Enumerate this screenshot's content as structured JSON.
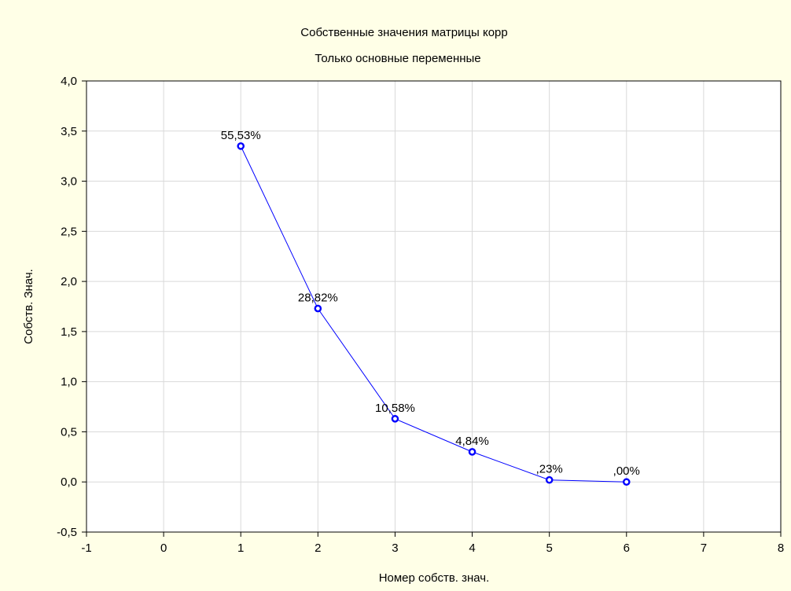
{
  "chart_data": {
    "type": "line",
    "title": "Собственные значения матрицы корр",
    "subtitle": "Только основные переменные",
    "xlabel": "Номер собств. знач.",
    "ylabel": "Собств. Знач.",
    "xlim": [
      -1,
      8
    ],
    "ylim": [
      -0.5,
      4.0
    ],
    "x_ticks": [
      -1,
      0,
      1,
      2,
      3,
      4,
      5,
      6,
      7,
      8
    ],
    "x_tick_labels": [
      "-1",
      "0",
      "1",
      "2",
      "3",
      "4",
      "5",
      "6",
      "7",
      "8"
    ],
    "y_ticks": [
      -0.5,
      0.0,
      0.5,
      1.0,
      1.5,
      2.0,
      2.5,
      3.0,
      3.5,
      4.0
    ],
    "y_tick_labels": [
      "-0,5",
      "0,0",
      "0,5",
      "1,0",
      "1,5",
      "2,0",
      "2,5",
      "3,0",
      "3,5",
      "4,0"
    ],
    "grid": true,
    "series": [
      {
        "x": [
          1,
          2,
          3,
          4,
          5,
          6
        ],
        "y": [
          3.35,
          1.73,
          0.63,
          0.3,
          0.02,
          0.0
        ],
        "labels": [
          "55,53%",
          "28,82%",
          "10,58%",
          "4,84%",
          ",23%",
          ",00%"
        ],
        "color": "#0000ff"
      }
    ]
  }
}
